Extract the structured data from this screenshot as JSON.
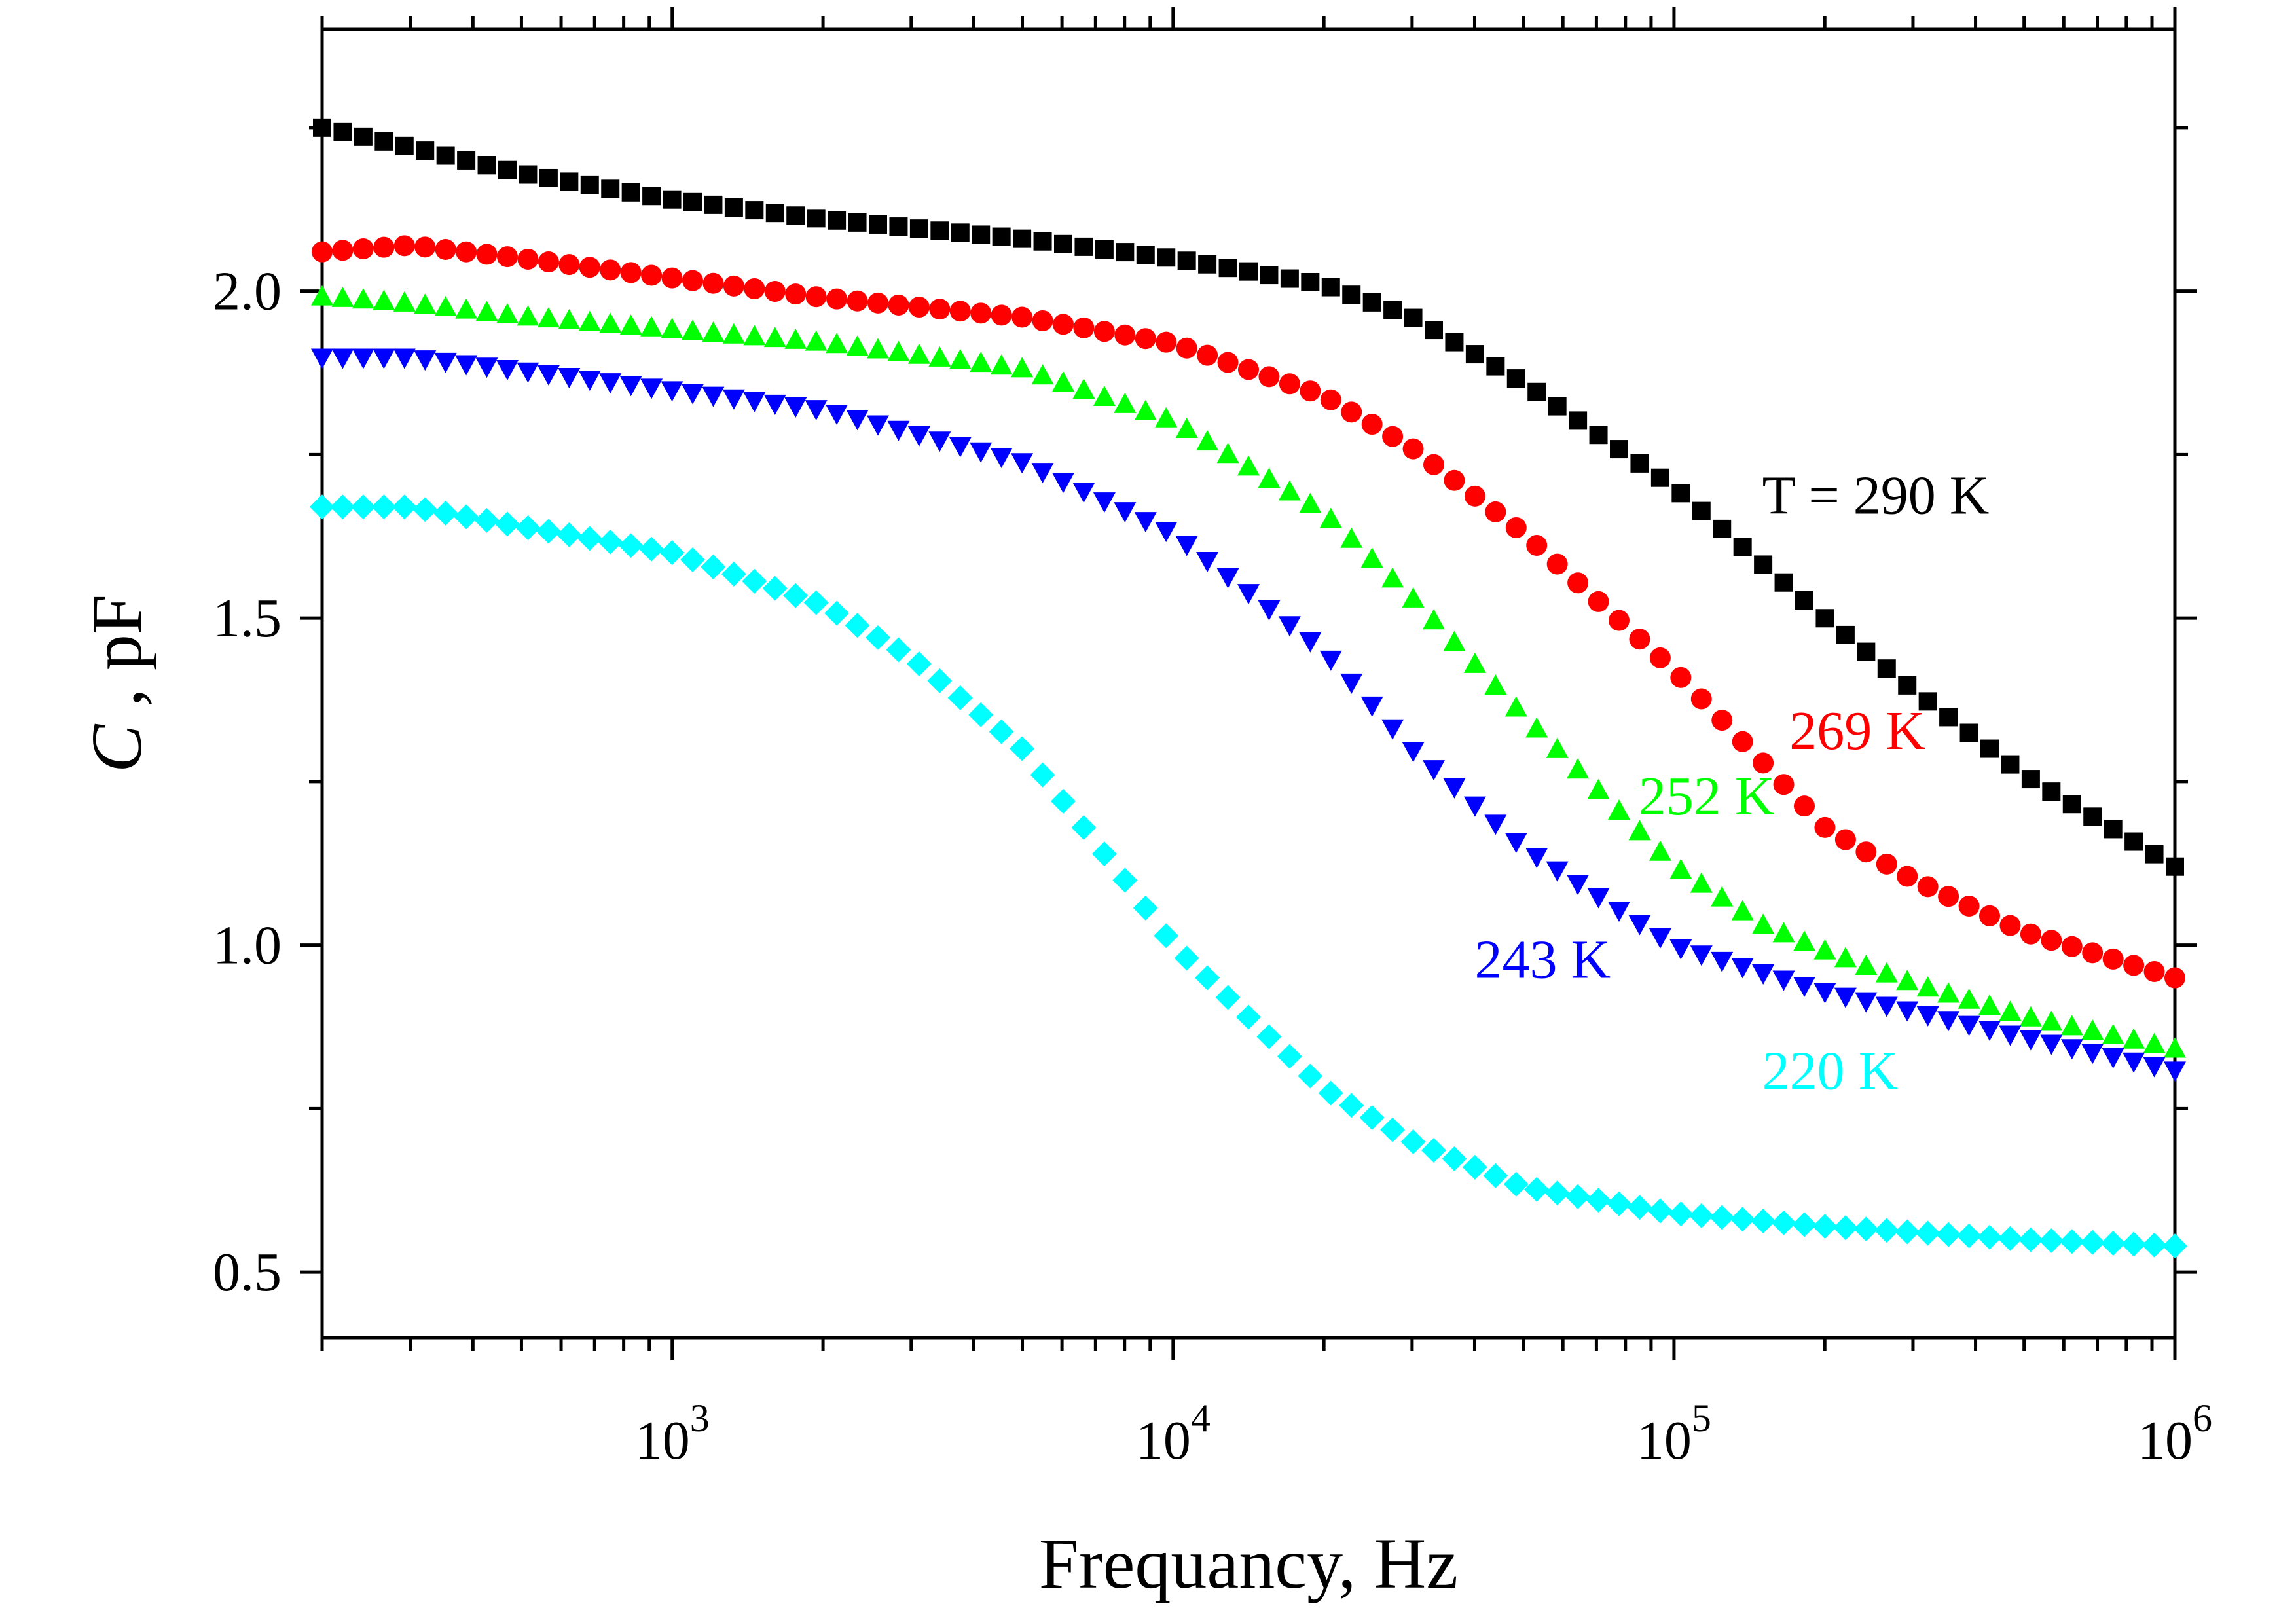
{
  "chart_data": {
    "type": "scatter",
    "xlabel": "Frequancy, Hz",
    "ylabel_italic": "C",
    "ylabel_rest": " , pF",
    "x_scale": "log",
    "xlim": [
      200,
      1000000
    ],
    "ylim": [
      0.4,
      2.4
    ],
    "x_ticks": [
      {
        "value": 1000,
        "base": "10",
        "exp": "3"
      },
      {
        "value": 10000,
        "base": "10",
        "exp": "4"
      },
      {
        "value": 100000,
        "base": "10",
        "exp": "5"
      },
      {
        "value": 1000000,
        "base": "10",
        "exp": "6"
      }
    ],
    "y_ticks": [
      {
        "value": 0.5,
        "label": "0.5"
      },
      {
        "value": 1.0,
        "label": "1.0"
      },
      {
        "value": 1.5,
        "label": "1.5"
      },
      {
        "value": 2.0,
        "label": "2.0"
      }
    ],
    "grid": false,
    "legend": "none",
    "series": [
      {
        "label": "T = 290 K",
        "color": "#000000",
        "marker": "square",
        "label_at": [
          150000,
          1.66
        ],
        "points": [
          [
            200,
            2.25
          ],
          [
            300,
            2.22
          ],
          [
            500,
            2.18
          ],
          [
            1000,
            2.14
          ],
          [
            2000,
            2.11
          ],
          [
            5000,
            2.08
          ],
          [
            10000,
            2.05
          ],
          [
            20000,
            2.01
          ],
          [
            30000,
            1.96
          ],
          [
            50000,
            1.86
          ],
          [
            100000,
            1.7
          ],
          [
            200000,
            1.5
          ],
          [
            300000,
            1.39
          ],
          [
            500000,
            1.26
          ],
          [
            1000000,
            1.12
          ]
        ]
      },
      {
        "label": "269 K",
        "color": "#ff0000",
        "marker": "circle",
        "label_at": [
          170000,
          1.3
        ],
        "points": [
          [
            200,
            2.06
          ],
          [
            300,
            2.07
          ],
          [
            500,
            2.05
          ],
          [
            1000,
            2.02
          ],
          [
            2000,
            1.99
          ],
          [
            5000,
            1.96
          ],
          [
            10000,
            1.92
          ],
          [
            20000,
            1.84
          ],
          [
            30000,
            1.76
          ],
          [
            50000,
            1.63
          ],
          [
            100000,
            1.42
          ],
          [
            150000,
            1.28
          ],
          [
            200000,
            1.18
          ],
          [
            300000,
            1.1
          ],
          [
            500000,
            1.02
          ],
          [
            1000000,
            0.95
          ]
        ]
      },
      {
        "label": "252 K",
        "color": "#00ff00",
        "marker": "triangle-up",
        "label_at": [
          85000,
          1.2
        ],
        "points": [
          [
            200,
            1.99
          ],
          [
            300,
            1.98
          ],
          [
            500,
            1.96
          ],
          [
            1000,
            1.94
          ],
          [
            2000,
            1.92
          ],
          [
            5000,
            1.88
          ],
          [
            10000,
            1.8
          ],
          [
            20000,
            1.66
          ],
          [
            30000,
            1.53
          ],
          [
            50000,
            1.35
          ],
          [
            100000,
            1.12
          ],
          [
            150000,
            1.03
          ],
          [
            200000,
            0.99
          ],
          [
            300000,
            0.94
          ],
          [
            500000,
            0.89
          ],
          [
            1000000,
            0.84
          ]
        ]
      },
      {
        "label": "243 K",
        "color": "#0000ff",
        "marker": "triangle-down",
        "label_at": [
          40000,
          0.95
        ],
        "points": [
          [
            200,
            1.9
          ],
          [
            300,
            1.9
          ],
          [
            500,
            1.88
          ],
          [
            1000,
            1.85
          ],
          [
            2000,
            1.82
          ],
          [
            5000,
            1.74
          ],
          [
            10000,
            1.63
          ],
          [
            20000,
            1.45
          ],
          [
            30000,
            1.3
          ],
          [
            50000,
            1.15
          ],
          [
            100000,
            1.0
          ],
          [
            200000,
            0.93
          ],
          [
            300000,
            0.9
          ],
          [
            500000,
            0.86
          ],
          [
            1000000,
            0.81
          ]
        ]
      },
      {
        "label": "220 K",
        "color": "#00ffff",
        "marker": "diamond",
        "label_at": [
          150000,
          0.78
        ],
        "points": [
          [
            200,
            1.67
          ],
          [
            300,
            1.67
          ],
          [
            500,
            1.64
          ],
          [
            1000,
            1.6
          ],
          [
            2000,
            1.52
          ],
          [
            3000,
            1.44
          ],
          [
            5000,
            1.3
          ],
          [
            8000,
            1.1
          ],
          [
            10000,
            1.0
          ],
          [
            20000,
            0.78
          ],
          [
            30000,
            0.7
          ],
          [
            50000,
            0.63
          ],
          [
            100000,
            0.59
          ],
          [
            200000,
            0.57
          ],
          [
            500000,
            0.55
          ],
          [
            1000000,
            0.54
          ]
        ]
      }
    ]
  }
}
